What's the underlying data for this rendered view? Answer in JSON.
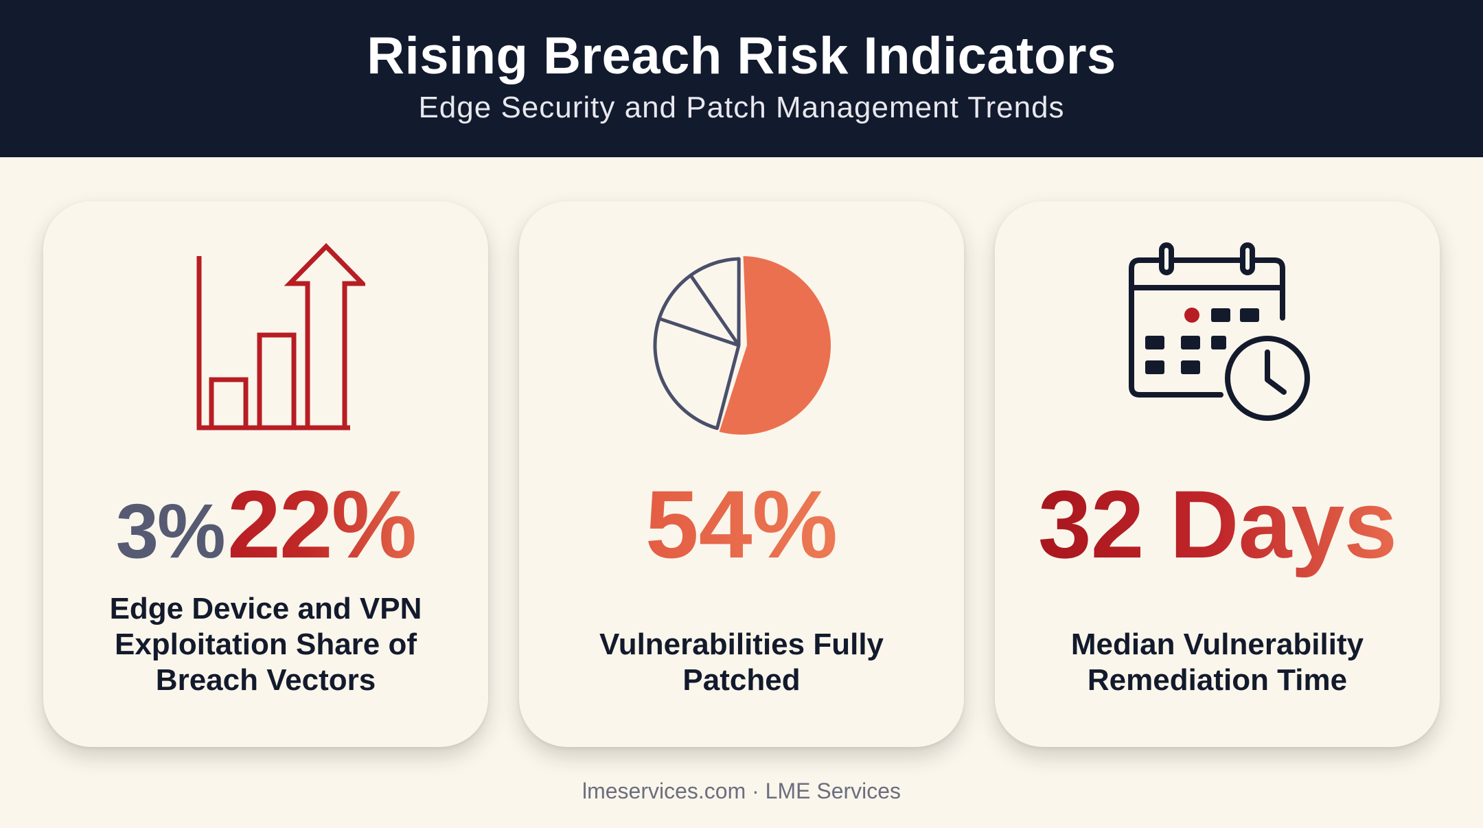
{
  "header": {
    "title": "Rising Breach Risk Indicators",
    "subtitle": "Edge Security and Patch Management Trends"
  },
  "cards": [
    {
      "icon": "bar-chart-arrow-icon",
      "stat_from": "3%",
      "stat_to": "22%",
      "label": "Edge Device and VPN Exploitation Share of Breach Vectors"
    },
    {
      "icon": "pie-chart-icon",
      "stat": "54%",
      "pie_fraction": 0.54,
      "label": "Vulnerabilities Fully Patched"
    },
    {
      "icon": "calendar-clock-icon",
      "stat": "32 Days",
      "label": "Median Vulnerability Remediation Time"
    }
  ],
  "colors": {
    "header_bg": "#121a2e",
    "page_bg": "#faf6ec",
    "accent_red": "#b71d23",
    "accent_orange": "#e86b4d",
    "navy": "#131a2c",
    "grey": "#565a72"
  },
  "footer": "lmeservices.com · LME Services"
}
